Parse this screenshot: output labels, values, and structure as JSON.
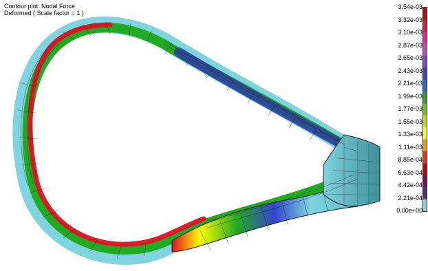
{
  "header": {
    "line1": "Contour plot:  Nodal Force",
    "line2": "Deformed ( Scale factor = 1 )"
  },
  "legend": {
    "labels": [
      "3.54e-03",
      "3.32e-03",
      "3.10e-03",
      "2.87e-03",
      "2.65e-03",
      "2.43e-03",
      "2.21e-03",
      "1.99e-03",
      "1.77e-03",
      "1.55e-03",
      "1.33e-03",
      "1.11e-03",
      "8.85e-04",
      "6.63e-04",
      "4.42e-04",
      "2.21e-04",
      "0.00e+00"
    ],
    "colors_top_to_bottom": [
      "#cc0000",
      "#e8183c",
      "#ff1aa0",
      "#cc44cc",
      "#8844dd",
      "#3344cc",
      "#2266ee",
      "#22aa22",
      "#66cc00",
      "#ccdd00",
      "#ffff00",
      "#ff9900",
      "#ff3300",
      "#cc0000",
      "#990066",
      "#4d2d8a",
      "#7fd4e0"
    ]
  },
  "viewer": {
    "model_colors": {
      "outer_band": "#7fd4e0",
      "inner_band": "#22cc44",
      "hot_band": "#dd1122",
      "low_band": "#2f3ba8",
      "mesh_line": "#1a1a1a",
      "hub": "#5fb8c6"
    }
  }
}
